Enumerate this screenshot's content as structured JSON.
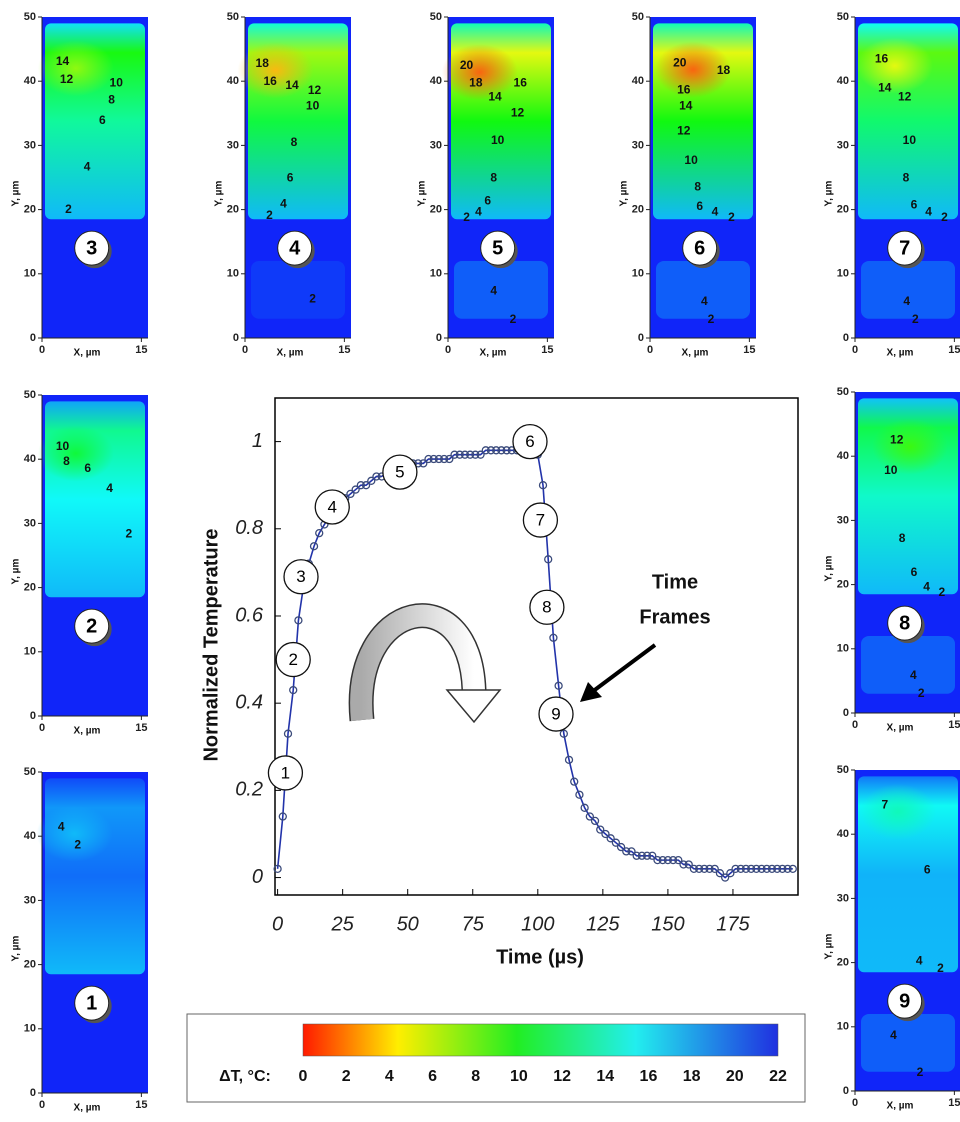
{
  "chart_data": {
    "type": "line",
    "xlabel": "Time (µs)",
    "ylabel": "Normalized Temperature",
    "xlim": [
      -1,
      200
    ],
    "ylim": [
      -0.04,
      1.1
    ],
    "xticks": [
      0,
      25,
      50,
      75,
      100,
      125,
      150,
      175
    ],
    "yticks": [
      0,
      0.2,
      0.4,
      0.6,
      0.8,
      1
    ],
    "x": [
      0,
      2,
      4,
      6,
      8,
      10,
      12,
      14,
      16,
      18,
      20,
      22,
      24,
      26,
      28,
      30,
      32,
      34,
      36,
      38,
      40,
      42,
      44,
      46,
      48,
      50,
      52,
      54,
      56,
      58,
      60,
      62,
      64,
      66,
      68,
      70,
      72,
      74,
      76,
      78,
      80,
      82,
      84,
      86,
      88,
      90,
      92,
      94,
      96,
      98,
      100,
      102,
      104,
      106,
      108,
      110,
      112,
      114,
      116,
      118,
      120,
      122,
      124,
      126,
      128,
      130,
      132,
      134,
      136,
      138,
      140,
      142,
      144,
      146,
      148,
      150,
      152,
      154,
      156,
      158,
      160,
      162,
      164,
      166,
      168,
      170,
      172,
      174,
      176,
      178,
      180,
      182,
      184,
      186,
      188,
      190,
      192,
      194,
      196,
      198
    ],
    "series": [
      {
        "color": "#2233aa",
        "marker_color": "#3a4a7a",
        "values": [
          0.02,
          0.14,
          0.33,
          0.43,
          0.59,
          0.67,
          0.72,
          0.76,
          0.79,
          0.81,
          0.83,
          0.84,
          0.86,
          0.87,
          0.88,
          0.89,
          0.9,
          0.9,
          0.91,
          0.92,
          0.92,
          0.93,
          0.93,
          0.94,
          0.94,
          0.94,
          0.95,
          0.95,
          0.95,
          0.96,
          0.96,
          0.96,
          0.96,
          0.96,
          0.97,
          0.97,
          0.97,
          0.97,
          0.97,
          0.97,
          0.98,
          0.98,
          0.98,
          0.98,
          0.98,
          0.98,
          0.98,
          0.98,
          0.98,
          0.98,
          0.97,
          0.9,
          0.73,
          0.55,
          0.44,
          0.33,
          0.27,
          0.22,
          0.19,
          0.16,
          0.14,
          0.13,
          0.11,
          0.1,
          0.09,
          0.08,
          0.07,
          0.06,
          0.06,
          0.05,
          0.05,
          0.05,
          0.05,
          0.04,
          0.04,
          0.04,
          0.04,
          0.04,
          0.03,
          0.03,
          0.02,
          0.02,
          0.02,
          0.02,
          0.02,
          0.01,
          0.0,
          0.01,
          0.02,
          0.02,
          0.02,
          0.02,
          0.02,
          0.02,
          0.02,
          0.02,
          0.02,
          0.02,
          0.02,
          0.02
        ]
      }
    ],
    "frames": [
      {
        "label": 1,
        "x": 3,
        "y": 0.24
      },
      {
        "label": 2,
        "x": 6,
        "y": 0.5
      },
      {
        "label": 3,
        "x": 9,
        "y": 0.69
      },
      {
        "label": 4,
        "x": 21,
        "y": 0.85
      },
      {
        "label": 5,
        "x": 47,
        "y": 0.93
      },
      {
        "label": 6,
        "x": 97,
        "y": 1.0
      },
      {
        "label": 7,
        "x": 101,
        "y": 0.82
      },
      {
        "label": 8,
        "x": 103.5,
        "y": 0.62
      },
      {
        "label": 9,
        "x": 107,
        "y": 0.375
      }
    ],
    "annotation": [
      "Time",
      "Frames"
    ]
  },
  "panels": {
    "xlabel": "X, µm",
    "ylabel": "Y, µm",
    "xlim": [
      0,
      16
    ],
    "ylim": [
      0,
      50
    ],
    "xticks": [
      0,
      15
    ],
    "yticks": [
      0,
      10,
      20,
      30,
      40,
      50
    ],
    "items": [
      {
        "frame": 3,
        "contours": [
          {
            "value": 14,
            "x": 3.1,
            "y": 43
          },
          {
            "value": 12,
            "x": 3.7,
            "y": 40.2
          },
          {
            "value": 10,
            "x": 11.2,
            "y": 39.7
          },
          {
            "value": 8,
            "x": 10.5,
            "y": 37
          },
          {
            "value": 6,
            "x": 9.1,
            "y": 33.8
          },
          {
            "value": 4,
            "x": 6.8,
            "y": 26.6
          },
          {
            "value": 2,
            "x": 4,
            "y": 20
          }
        ]
      },
      {
        "frame": 4,
        "contours": [
          {
            "value": 18,
            "x": 2.6,
            "y": 42.7
          },
          {
            "value": 16,
            "x": 3.8,
            "y": 39.9
          },
          {
            "value": 14,
            "x": 7.1,
            "y": 39.3
          },
          {
            "value": 12,
            "x": 10.5,
            "y": 38.5
          },
          {
            "value": 10,
            "x": 10.2,
            "y": 36.1
          },
          {
            "value": 8,
            "x": 7.4,
            "y": 30.4
          },
          {
            "value": 6,
            "x": 6.8,
            "y": 24.9
          },
          {
            "value": 4,
            "x": 5.8,
            "y": 20.8
          },
          {
            "value": 2,
            "x": 3.7,
            "y": 19
          },
          {
            "value": 2,
            "x": 10.2,
            "y": 6
          }
        ]
      },
      {
        "frame": 5,
        "contours": [
          {
            "value": 20,
            "x": 2.8,
            "y": 42.4
          },
          {
            "value": 18,
            "x": 4.2,
            "y": 39.7
          },
          {
            "value": 16,
            "x": 10.9,
            "y": 39.7
          },
          {
            "value": 14,
            "x": 7.1,
            "y": 37.5
          },
          {
            "value": 12,
            "x": 10.5,
            "y": 35
          },
          {
            "value": 10,
            "x": 7.5,
            "y": 30.7
          },
          {
            "value": 8,
            "x": 6.9,
            "y": 24.9
          },
          {
            "value": 6,
            "x": 6,
            "y": 21.3
          },
          {
            "value": 4,
            "x": 4.6,
            "y": 19.6
          },
          {
            "value": 2,
            "x": 2.8,
            "y": 18.7
          },
          {
            "value": 4,
            "x": 6.9,
            "y": 7.3
          },
          {
            "value": 2,
            "x": 9.8,
            "y": 2.8
          }
        ]
      },
      {
        "frame": 6,
        "contours": [
          {
            "value": 20,
            "x": 4.5,
            "y": 42.8
          },
          {
            "value": 18,
            "x": 11.1,
            "y": 41.6
          },
          {
            "value": 16,
            "x": 5.1,
            "y": 38.6
          },
          {
            "value": 14,
            "x": 5.4,
            "y": 36.1
          },
          {
            "value": 12,
            "x": 5.1,
            "y": 32.2
          },
          {
            "value": 10,
            "x": 6.2,
            "y": 27.6
          },
          {
            "value": 8,
            "x": 7.2,
            "y": 23.5
          },
          {
            "value": 6,
            "x": 7.5,
            "y": 20.4
          },
          {
            "value": 4,
            "x": 9.8,
            "y": 19.6
          },
          {
            "value": 2,
            "x": 12.3,
            "y": 18.7
          },
          {
            "value": 4,
            "x": 8.2,
            "y": 5.6
          },
          {
            "value": 2,
            "x": 9.2,
            "y": 2.8
          }
        ]
      },
      {
        "frame": 7,
        "contours": [
          {
            "value": 16,
            "x": 4,
            "y": 43.4
          },
          {
            "value": 14,
            "x": 4.5,
            "y": 38.9
          },
          {
            "value": 12,
            "x": 7.5,
            "y": 37.5
          },
          {
            "value": 10,
            "x": 8.2,
            "y": 30.7
          },
          {
            "value": 8,
            "x": 7.7,
            "y": 24.9
          },
          {
            "value": 6,
            "x": 8.9,
            "y": 20.7
          },
          {
            "value": 4,
            "x": 11.1,
            "y": 19.6
          },
          {
            "value": 2,
            "x": 13.5,
            "y": 18.7
          },
          {
            "value": 4,
            "x": 7.8,
            "y": 5.6
          },
          {
            "value": 2,
            "x": 9.1,
            "y": 2.8
          }
        ]
      },
      {
        "frame": 2,
        "contours": [
          {
            "value": 10,
            "x": 3.1,
            "y": 41.9
          },
          {
            "value": 8,
            "x": 3.7,
            "y": 39.6
          },
          {
            "value": 6,
            "x": 6.9,
            "y": 38.5
          },
          {
            "value": 4,
            "x": 10.2,
            "y": 35.4
          },
          {
            "value": 2,
            "x": 13.1,
            "y": 28.3
          }
        ]
      },
      {
        "frame": 1,
        "contours": [
          {
            "value": 4,
            "x": 2.9,
            "y": 41.4
          },
          {
            "value": 2,
            "x": 5.4,
            "y": 38.6
          }
        ]
      },
      {
        "frame": 8,
        "contours": [
          {
            "value": 12,
            "x": 6.3,
            "y": 42.5
          },
          {
            "value": 10,
            "x": 5.4,
            "y": 37.7
          },
          {
            "value": 8,
            "x": 7.1,
            "y": 27.1
          },
          {
            "value": 6,
            "x": 8.9,
            "y": 21.8
          },
          {
            "value": 4,
            "x": 10.8,
            "y": 19.6
          },
          {
            "value": 2,
            "x": 13.1,
            "y": 18.7
          },
          {
            "value": 4,
            "x": 8.8,
            "y": 5.8
          },
          {
            "value": 2,
            "x": 10,
            "y": 3
          }
        ]
      },
      {
        "frame": 9,
        "contours": [
          {
            "value": 7,
            "x": 4.5,
            "y": 44.5
          },
          {
            "value": 6,
            "x": 10.9,
            "y": 34.4
          },
          {
            "value": 4,
            "x": 9.7,
            "y": 20.2
          },
          {
            "value": 2,
            "x": 12.9,
            "y": 19
          },
          {
            "value": 4,
            "x": 5.8,
            "y": 8.6
          },
          {
            "value": 2,
            "x": 9.8,
            "y": 2.8
          }
        ]
      }
    ]
  },
  "colorbar": {
    "label": "ΔT, °C:",
    "lim": [
      0,
      22
    ],
    "ticks": [
      0,
      2,
      4,
      6,
      8,
      10,
      12,
      14,
      16,
      18,
      20,
      22
    ]
  }
}
